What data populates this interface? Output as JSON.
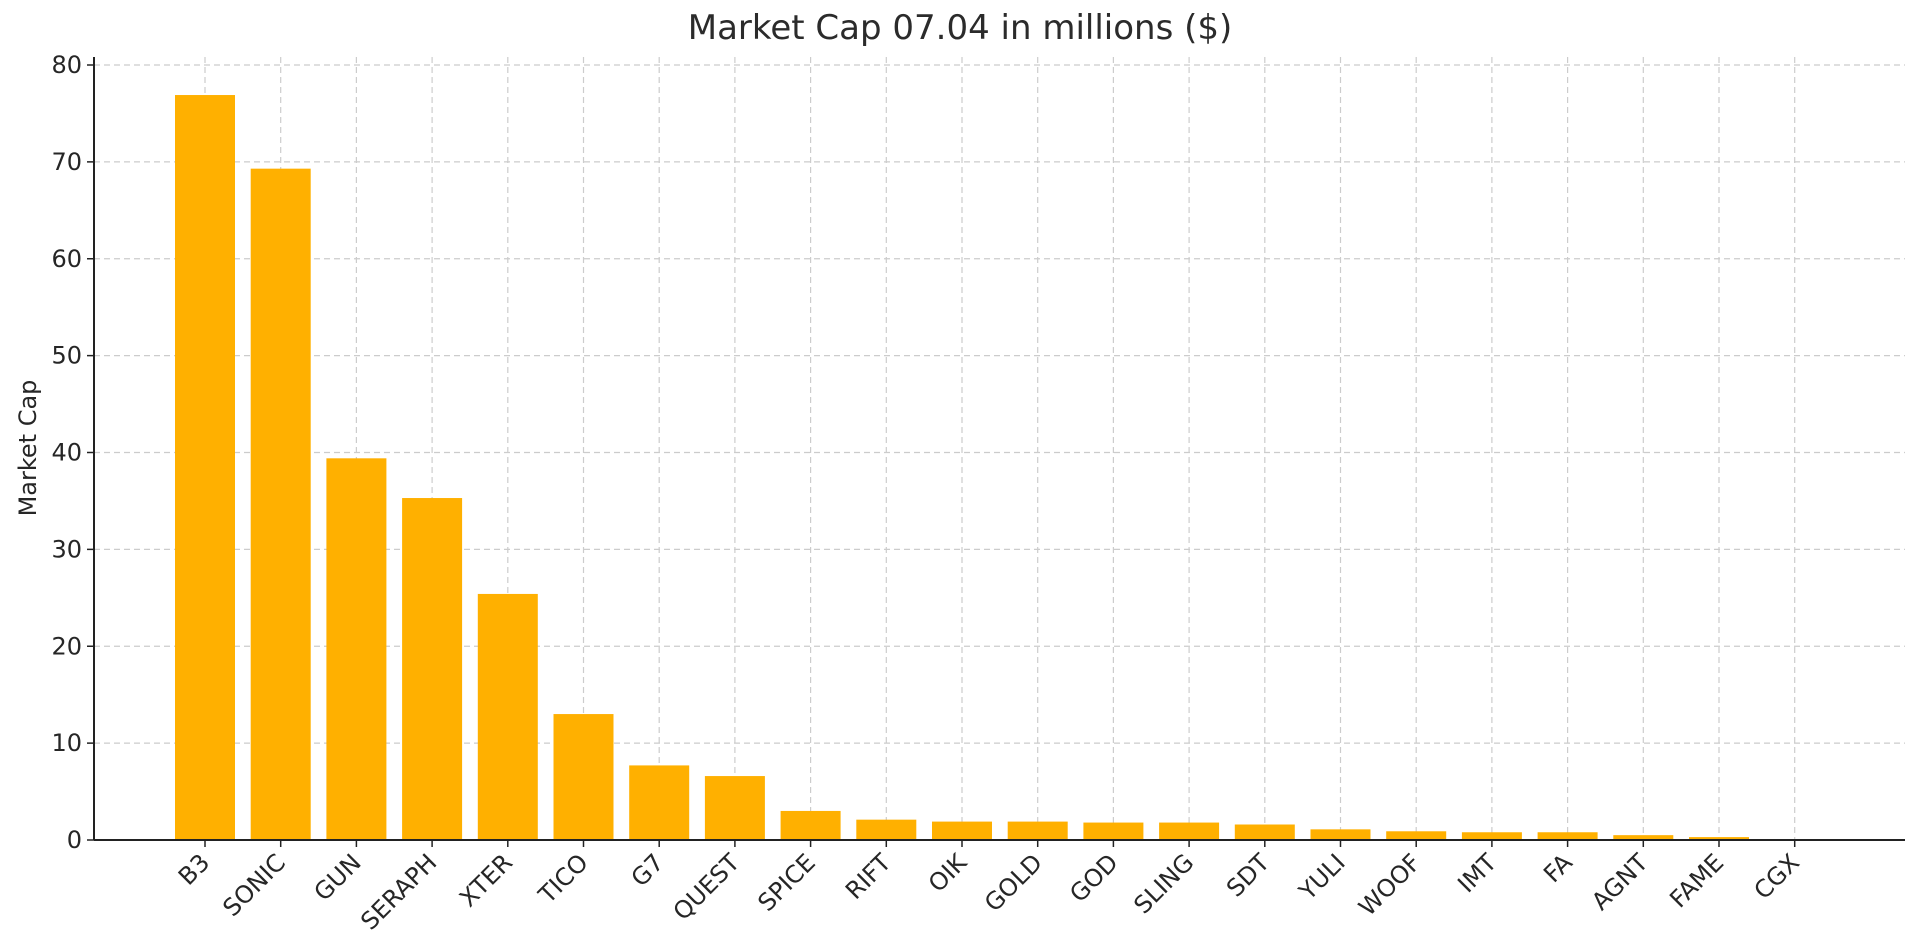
{
  "chart_data": {
    "type": "bar",
    "title": "Market Cap 07.04 in millions ($)",
    "xlabel": "",
    "ylabel": "Market Cap",
    "ylim": [
      0,
      80
    ],
    "yticks": [
      0,
      10,
      20,
      30,
      40,
      50,
      60,
      70,
      80
    ],
    "grid": true,
    "legend": null,
    "bar_color": "#FFB000",
    "categories": [
      "B3",
      "SONIC",
      "GUN",
      "SERAPH",
      "XTER",
      "TICO",
      "G7",
      "QUEST",
      "SPICE",
      "RIFT",
      "OIK",
      "GOLD",
      "GOD",
      "SLING",
      "SDT",
      "YULI",
      "WOOF",
      "IMT",
      "FA",
      "AGNT",
      "FAME",
      "CGX"
    ],
    "values": [
      76.9,
      69.3,
      39.4,
      35.3,
      25.4,
      13.0,
      7.7,
      6.6,
      3.0,
      2.1,
      1.9,
      1.9,
      1.8,
      1.8,
      1.6,
      1.1,
      0.9,
      0.8,
      0.8,
      0.5,
      0.3,
      0.1
    ]
  }
}
